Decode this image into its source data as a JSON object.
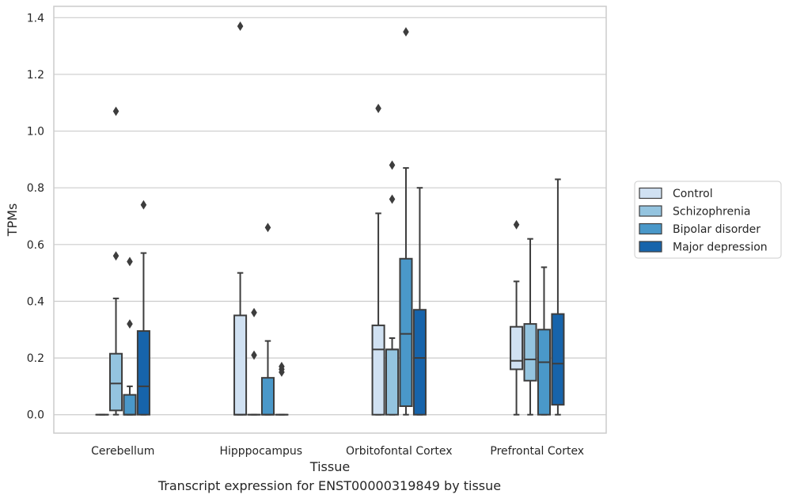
{
  "caption": "Transcript expression for ENST00000319849 by tissue",
  "chart_data": {
    "type": "box",
    "xlabel": "Tissue",
    "ylabel": "TPMs",
    "ylim": [
      -0.065,
      1.44
    ],
    "yticks": [
      "0.0",
      "0.2",
      "0.4",
      "0.6",
      "0.8",
      "1.0",
      "1.2",
      "1.4"
    ],
    "categories": [
      "Cerebellum",
      "Hipppocampus",
      "Orbitofontal Cortex",
      "Prefrontal Cortex"
    ],
    "grid": "horizontal",
    "legend_position": "right",
    "series": [
      {
        "name": "Control",
        "color": "#d0e1f2",
        "boxes": [
          {
            "q1": 0,
            "median": 0,
            "q3": 0,
            "whisker_low": 0,
            "whisker_high": 0,
            "outliers": []
          },
          {
            "q1": 0,
            "median": 0,
            "q3": 0.35,
            "whisker_low": 0,
            "whisker_high": 0.5,
            "outliers": [
              1.37
            ]
          },
          {
            "q1": 0,
            "median": 0.23,
            "q3": 0.315,
            "whisker_low": 0,
            "whisker_high": 0.71,
            "outliers": [
              1.08
            ]
          },
          {
            "q1": 0.16,
            "median": 0.19,
            "q3": 0.31,
            "whisker_low": 0,
            "whisker_high": 0.47,
            "outliers": [
              0.67
            ]
          }
        ]
      },
      {
        "name": "Schizophrenia",
        "color": "#94c4df",
        "boxes": [
          {
            "q1": 0.015,
            "median": 0.11,
            "q3": 0.215,
            "whisker_low": 0,
            "whisker_high": 0.41,
            "outliers": [
              1.07,
              0.56
            ]
          },
          {
            "q1": 0,
            "median": 0,
            "q3": 0,
            "whisker_low": 0,
            "whisker_high": 0,
            "outliers": [
              0.36,
              0.21
            ]
          },
          {
            "q1": 0,
            "median": 0.23,
            "q3": 0.23,
            "whisker_low": 0,
            "whisker_high": 0.27,
            "outliers": [
              0.88,
              0.76
            ]
          },
          {
            "q1": 0.12,
            "median": 0.195,
            "q3": 0.32,
            "whisker_low": 0,
            "whisker_high": 0.62,
            "outliers": []
          }
        ]
      },
      {
        "name": "Bipolar disorder",
        "color": "#4a98c9",
        "boxes": [
          {
            "q1": 0,
            "median": 0,
            "q3": 0.07,
            "whisker_low": 0,
            "whisker_high": 0.1,
            "outliers": [
              0.54,
              0.32
            ]
          },
          {
            "q1": 0,
            "median": 0,
            "q3": 0.13,
            "whisker_low": 0,
            "whisker_high": 0.26,
            "outliers": [
              0.66
            ]
          },
          {
            "q1": 0.03,
            "median": 0.285,
            "q3": 0.55,
            "whisker_low": 0,
            "whisker_high": 0.87,
            "outliers": [
              1.35
            ]
          },
          {
            "q1": 0,
            "median": 0.185,
            "q3": 0.3,
            "whisker_low": 0,
            "whisker_high": 0.52,
            "outliers": []
          }
        ]
      },
      {
        "name": "Major depression",
        "color": "#1764ab",
        "boxes": [
          {
            "q1": 0,
            "median": 0.1,
            "q3": 0.295,
            "whisker_low": 0,
            "whisker_high": 0.57,
            "outliers": [
              0.74
            ]
          },
          {
            "q1": 0,
            "median": 0,
            "q3": 0,
            "whisker_low": 0,
            "whisker_high": 0,
            "outliers": [
              0.17,
              0.16,
              0.15
            ]
          },
          {
            "q1": 0,
            "median": 0.2,
            "q3": 0.37,
            "whisker_low": 0,
            "whisker_high": 0.8,
            "outliers": []
          },
          {
            "q1": 0.035,
            "median": 0.18,
            "q3": 0.355,
            "whisker_low": 0,
            "whisker_high": 0.83,
            "outliers": []
          }
        ]
      }
    ]
  }
}
